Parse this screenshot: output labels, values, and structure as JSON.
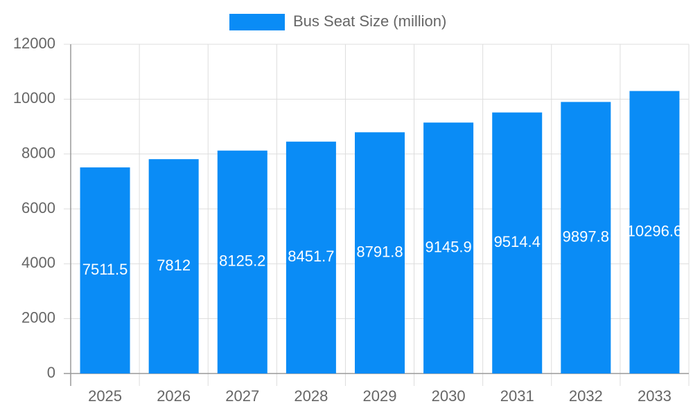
{
  "chart_data": {
    "type": "bar",
    "legend": "Bus Seat Size (million)",
    "color": "#0a8cf6",
    "categories": [
      "2025",
      "2026",
      "2027",
      "2028",
      "2029",
      "2030",
      "2031",
      "2032",
      "2033"
    ],
    "values": [
      7511.5,
      7812,
      8125.2,
      8451.7,
      8791.8,
      9145.9,
      9514.4,
      9897.8,
      10296.6
    ],
    "ylim": [
      0,
      12000
    ],
    "yticks": [
      0,
      2000,
      4000,
      6000,
      8000,
      10000,
      12000
    ],
    "grid": true
  }
}
